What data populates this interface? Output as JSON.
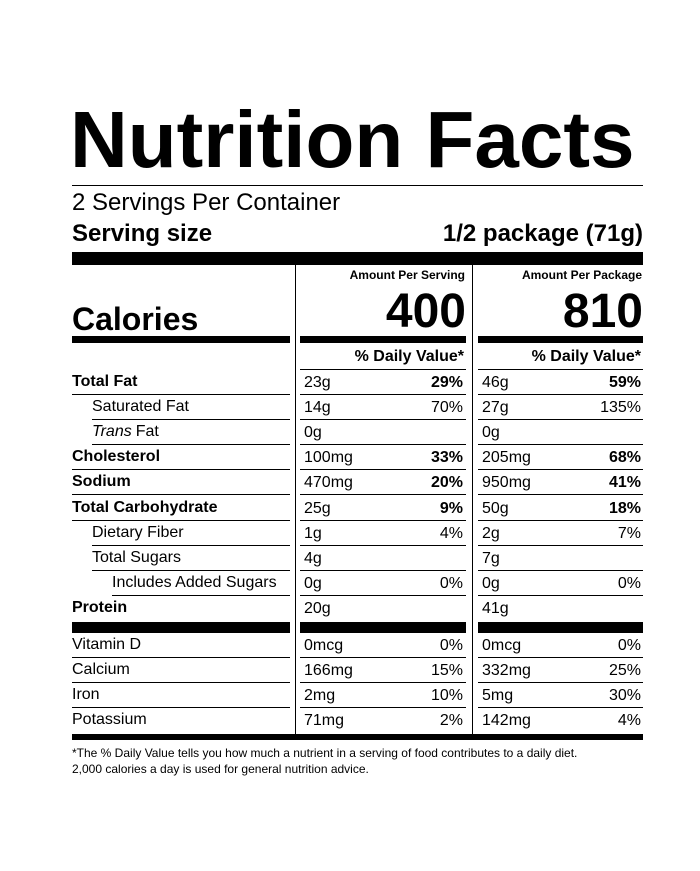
{
  "header": {
    "title": "Nutrition Facts",
    "servings": "2 Servings Per Container",
    "serving_size_label": "Serving size",
    "serving_size": "1/2 package (71g)"
  },
  "calories_label": "Calories",
  "columns": [
    {
      "heading": "Amount Per Serving",
      "calories": 400,
      "daily_value_heading": "% Daily Value*"
    },
    {
      "heading": "Amount Per Package",
      "calories": 810,
      "daily_value_heading": "% Daily Value*"
    }
  ],
  "nutrients": [
    {
      "label": "Total Fat",
      "values": [
        [
          "23g",
          "29%"
        ],
        [
          "46g",
          "59%"
        ]
      ]
    },
    {
      "label": "Saturated Fat",
      "values": [
        [
          "14g",
          "70%"
        ],
        [
          "27g",
          "135%"
        ]
      ]
    },
    {
      "label_italic": "Trans",
      "label": "Fat",
      "values": [
        [
          "0g"
        ],
        [
          "0g"
        ]
      ]
    },
    {
      "label": "Cholesterol",
      "values": [
        [
          "100mg",
          "33%"
        ],
        [
          "205mg",
          "68%"
        ]
      ]
    },
    {
      "label": "Sodium",
      "values": [
        [
          "470mg",
          "20%"
        ],
        [
          "950mg",
          "41%"
        ]
      ]
    },
    {
      "label": "Total Carbohydrate",
      "values": [
        [
          "25g",
          "9%"
        ],
        [
          "50g",
          "18%"
        ]
      ]
    },
    {
      "label": "Dietary Fiber",
      "values": [
        [
          "1g",
          "4%"
        ],
        [
          "2g",
          "7%"
        ]
      ]
    },
    {
      "label": "Total Sugars",
      "values": [
        [
          "4g"
        ],
        [
          "7g"
        ]
      ]
    },
    {
      "label": "Includes Added Sugars",
      "values": [
        [
          "0g",
          "0%"
        ],
        [
          "0g",
          "0%"
        ]
      ]
    },
    {
      "label": "Protein",
      "values": [
        [
          "20g"
        ],
        [
          "41g"
        ]
      ]
    }
  ],
  "vitamins": [
    {
      "label": "Vitamin D",
      "values": [
        [
          "0mcg",
          "0%"
        ],
        [
          "0mcg",
          "0%"
        ]
      ]
    },
    {
      "label": "Calcium",
      "values": [
        [
          "166mg",
          "15%"
        ],
        [
          "332mg",
          "25%"
        ]
      ]
    },
    {
      "label": "Iron",
      "values": [
        [
          "2mg",
          "10%"
        ],
        [
          "5mg",
          "30%"
        ]
      ]
    },
    {
      "label": "Potassium",
      "values": [
        [
          "71mg",
          "2%"
        ],
        [
          "142mg",
          "4%"
        ]
      ]
    }
  ],
  "footnote": [
    "*The % Daily Value tells you how much a nutrient in a serving of food contributes to a daily diet.",
    "2,000 calories a day is used for general nutrition advice."
  ]
}
